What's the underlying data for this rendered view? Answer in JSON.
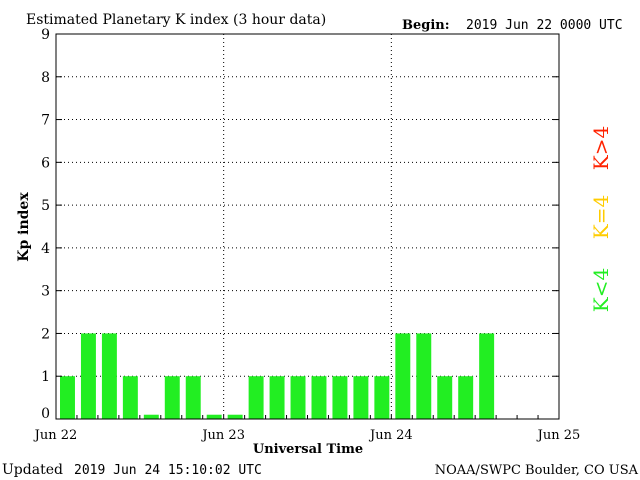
{
  "chart_data": {
    "type": "bar",
    "title": "Estimated Planetary K index (3 hour data)",
    "begin_label": "Begin:",
    "begin_value": "2019 Jun 22 0000 UTC",
    "ylabel": "Kp index",
    "xlabel": "Universal Time",
    "ylim": [
      0,
      9
    ],
    "yticks": [
      "0",
      "1",
      "2",
      "3",
      "4",
      "5",
      "6",
      "7",
      "8",
      "9"
    ],
    "x_range_hours": [
      0,
      72
    ],
    "x_ticks": [
      {
        "label": "Jun 22",
        "hour": 0
      },
      {
        "label": "Jun 23",
        "hour": 24
      },
      {
        "label": "Jun 24",
        "hour": 48
      },
      {
        "label": "Jun 25",
        "hour": 72
      }
    ],
    "values": [
      1,
      2,
      2,
      1,
      0.1,
      1,
      1,
      0.1,
      0.1,
      1,
      1,
      1,
      1,
      1,
      1,
      1,
      2,
      2,
      1,
      1,
      2
    ],
    "bar_interval_hours": 3,
    "grid": true,
    "legend": {
      "placement": "right",
      "entries": [
        {
          "label": "K<4",
          "color": "#22ee22"
        },
        {
          "label": "K=4",
          "color": "#ffcc00"
        },
        {
          "label": "K>4",
          "color": "#ff2200"
        }
      ]
    },
    "bar_color": "#22ee22"
  },
  "footer": {
    "updated_label": "Updated",
    "updated_value": "2019 Jun 24 15:10:02 UTC",
    "source": "NOAA/SWPC Boulder, CO USA"
  }
}
